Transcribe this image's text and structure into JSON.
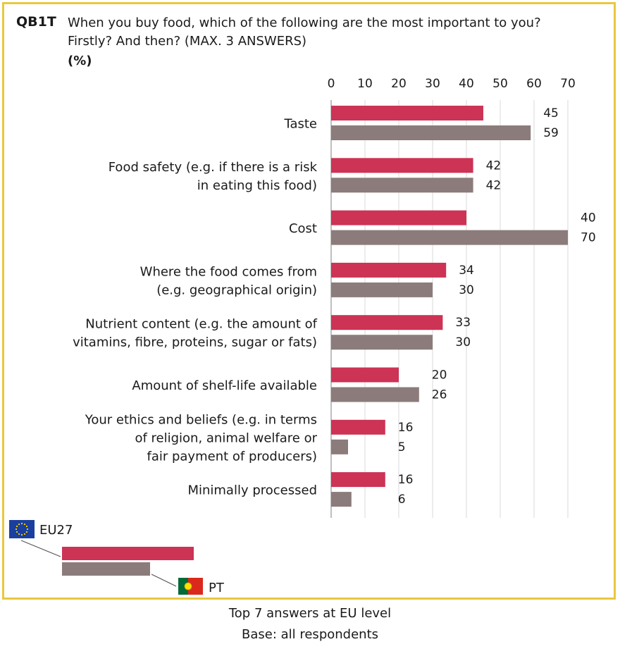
{
  "question": {
    "id": "QB1T",
    "text_line1": "When you buy food, which of the following are the most important to you?",
    "text_line2": "Firstly? And then? (MAX. 3 ANSWERS)",
    "unit": "(%)"
  },
  "colors": {
    "eu": "#cc3355",
    "pt": "#8c7b7b",
    "frame": "#e8c840",
    "grid": "#d9d9d9"
  },
  "chart_data": {
    "type": "bar",
    "orientation": "horizontal",
    "title": "When you buy food, which of the following are the most important to you? Firstly? And then? (MAX. 3 ANSWERS)",
    "xlabel": "",
    "ylabel": "",
    "xlim": [
      0,
      70
    ],
    "ticks": [
      0,
      10,
      20,
      30,
      40,
      50,
      60,
      70
    ],
    "grid": true,
    "categories": [
      [
        "Taste"
      ],
      [
        "Food safety (e.g. if there is a risk",
        "in eating this food)"
      ],
      [
        "Cost"
      ],
      [
        "Where the food comes from",
        "(e.g. geographical origin)"
      ],
      [
        "Nutrient content (e.g. the amount of",
        "vitamins, fibre, proteins, sugar or fats)"
      ],
      [
        "Amount of shelf-life available"
      ],
      [
        "Your ethics and beliefs (e.g. in terms",
        "of religion, animal welfare or",
        "fair payment of producers)"
      ],
      [
        "Minimally processed"
      ]
    ],
    "series": [
      {
        "name": "EU27",
        "values": [
          45,
          42,
          40,
          34,
          33,
          20,
          16,
          16
        ]
      },
      {
        "name": "PT",
        "values": [
          59,
          42,
          70,
          30,
          30,
          26,
          5,
          6
        ]
      }
    ]
  },
  "legend": {
    "eu_label": "EU27",
    "pt_label": "PT"
  },
  "footer": {
    "line1": "Top 7 answers at EU level",
    "line2": "Base: all respondents"
  }
}
